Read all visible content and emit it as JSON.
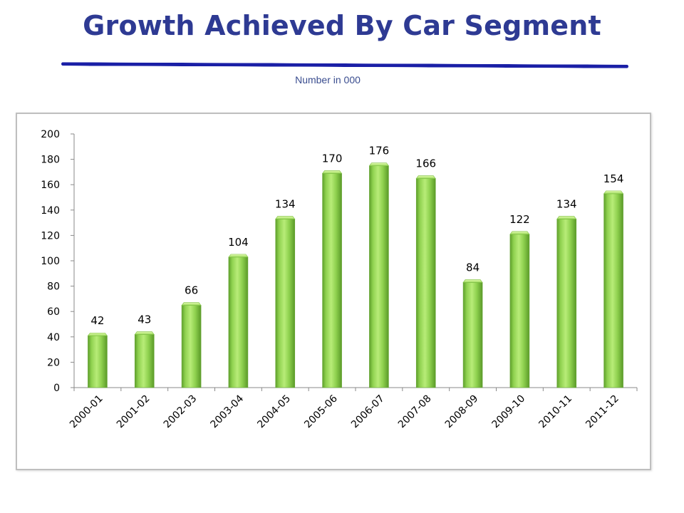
{
  "header": {
    "title": "Growth Achieved By Car Segment",
    "subtitle": "Number in 000"
  },
  "colors": {
    "bar_fill": "#8fd14f",
    "bar_dark": "#5c9e2a",
    "bar_light": "#c8f08d",
    "title": "#2e3a93",
    "rule": "#1a1fa6"
  },
  "chart_data": {
    "type": "bar",
    "categories": [
      "2000-01",
      "2001-02",
      "2002-03",
      "2003-04",
      "2004-05",
      "2005-06",
      "2006-07",
      "2007-08",
      "2008-09",
      "2009-10",
      "2010-11",
      "2011-12"
    ],
    "values": [
      42,
      43,
      66,
      104,
      134,
      170,
      176,
      166,
      84,
      122,
      134,
      154
    ],
    "data_labels": [
      "42",
      "43",
      "66",
      "104",
      "134",
      "170",
      "176",
      "166",
      "84",
      "122",
      "134",
      "154"
    ],
    "title": "",
    "xlabel": "",
    "ylabel": "",
    "ylim": [
      0,
      200
    ],
    "yticks": [
      0,
      20,
      40,
      60,
      80,
      100,
      120,
      140,
      160,
      180,
      200
    ],
    "grid": false,
    "legend": "none"
  }
}
